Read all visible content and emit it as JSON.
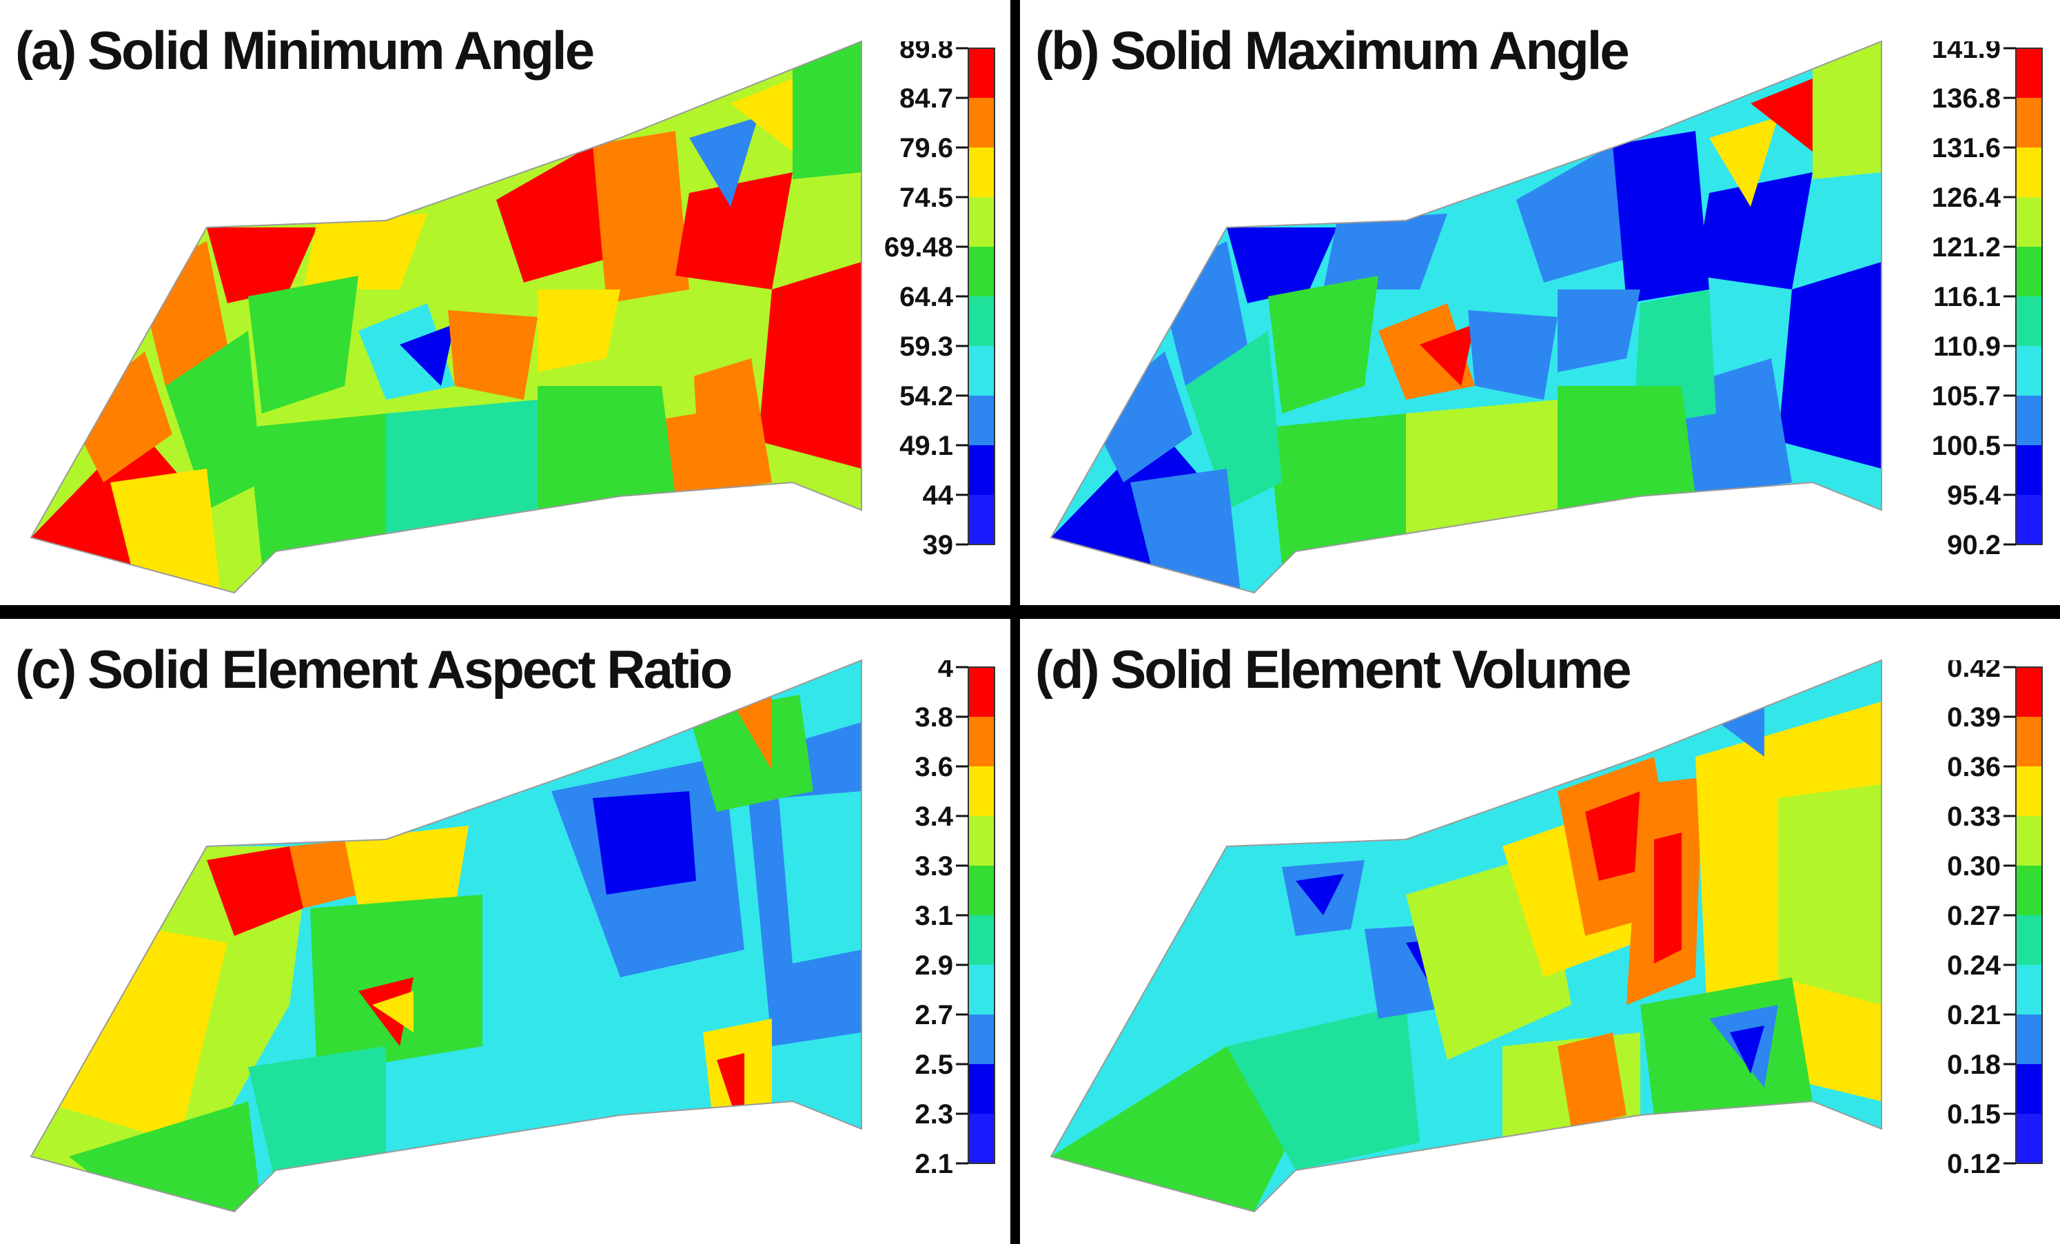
{
  "panels": [
    {
      "id": "a",
      "title": "(a) Solid Minimum Angle",
      "colorbar": {
        "ticks": [
          "89.8",
          "84.7",
          "79.6",
          "74.5",
          "69.48",
          "64.4",
          "59.3",
          "54.2",
          "49.1",
          "44",
          "39"
        ]
      }
    },
    {
      "id": "b",
      "title": "(b) Solid Maximum Angle",
      "colorbar": {
        "ticks": [
          "141.9",
          "136.8",
          "131.6",
          "126.4",
          "121.2",
          "116.1",
          "110.9",
          "105.7",
          "100.5",
          "95.4",
          "90.2"
        ]
      }
    },
    {
      "id": "c",
      "title": "(c) Solid Element Aspect Ratio",
      "colorbar": {
        "ticks": [
          "4",
          "3.8",
          "3.6",
          "3.4",
          "3.3",
          "3.1",
          "2.9",
          "2.7",
          "2.5",
          "2.3",
          "2.1"
        ]
      }
    },
    {
      "id": "d",
      "title": "(d) Solid Element Volume",
      "colorbar": {
        "ticks": [
          "0.42",
          "0.39",
          "0.36",
          "0.33",
          "0.30",
          "0.27",
          "0.24",
          "0.21",
          "0.18",
          "0.15",
          "0.12"
        ]
      }
    }
  ],
  "colormap": [
    "#ff0000",
    "#ff7f00",
    "#ffe500",
    "#b2f52b",
    "#33dd33",
    "#1ee29b",
    "#33e6ea",
    "#2e86f0",
    "#0000f0",
    "#1a1aff"
  ]
}
